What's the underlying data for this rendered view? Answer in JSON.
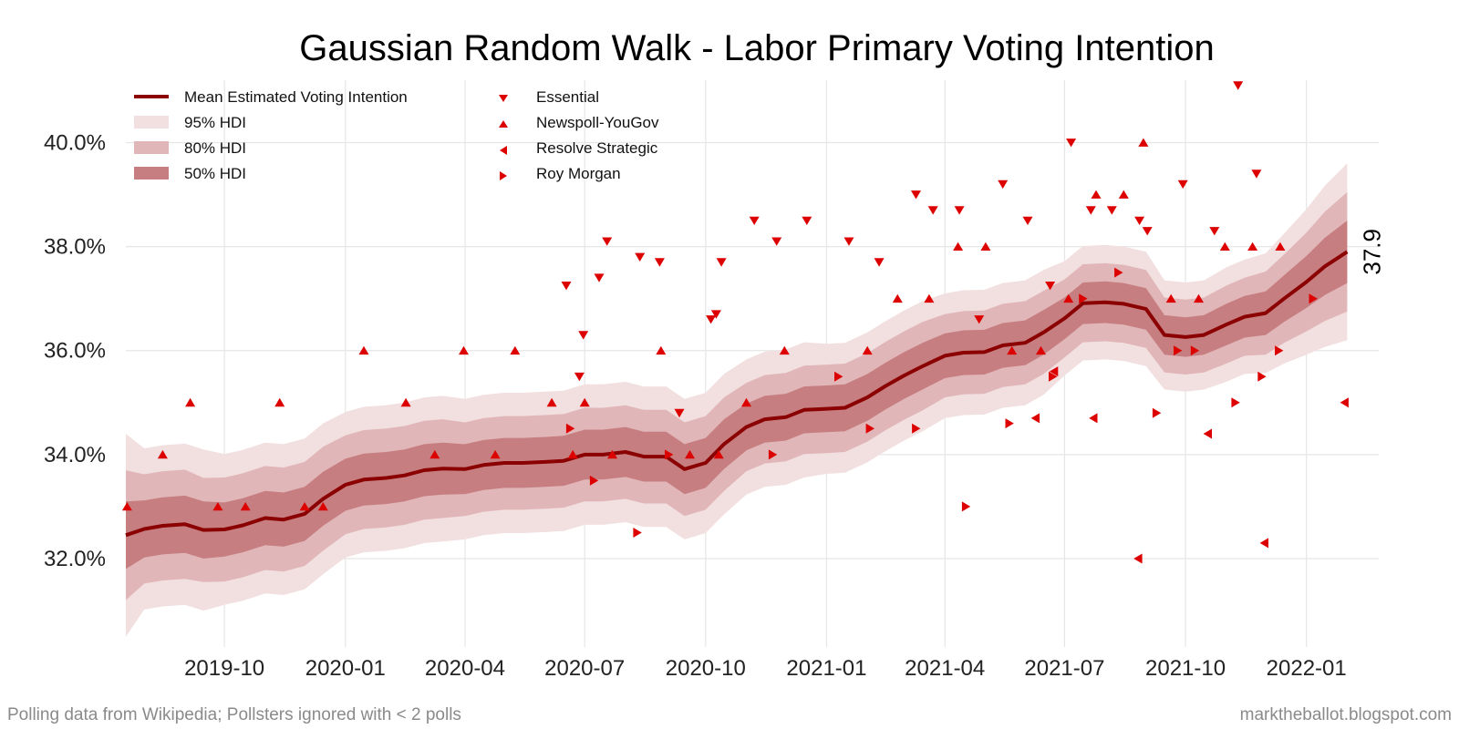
{
  "footer": {
    "left": "Polling data from Wikipedia; Pollsters ignored with < 2 polls",
    "right": "marktheballot.blogspot.com"
  },
  "chart_data": {
    "type": "line",
    "title": "Gaussian Random Walk - Labor Primary Voting Intention",
    "xlabel": "",
    "ylabel": "",
    "x_range": [
      "2019-07-18",
      "2022-02-25"
    ],
    "ylim": [
      30.3,
      41.2
    ],
    "yticks": [
      32,
      34,
      36,
      38,
      40
    ],
    "ytick_labels": [
      "32.0%",
      "34.0%",
      "36.0%",
      "38.0%",
      "40.0%"
    ],
    "xticks": [
      "2019-10-01",
      "2020-01-01",
      "2020-04-01",
      "2020-07-01",
      "2020-10-01",
      "2021-01-01",
      "2021-04-01",
      "2021-07-01",
      "2021-10-01",
      "2022-01-01"
    ],
    "xtick_labels": [
      "2019-10",
      "2020-01",
      "2020-04",
      "2020-07",
      "2020-10",
      "2021-01",
      "2021-04",
      "2021-07",
      "2021-10",
      "2022-01"
    ],
    "grid": true,
    "legend_position": "top-left",
    "legend": {
      "mean": "Mean Estimated Voting Intention",
      "hdi95": "95% HDI",
      "hdi80": "80% HDI",
      "hdi50": "50% HDI",
      "essential": "Essential",
      "newspoll": "Newspoll-YouGov",
      "resolve": "Resolve Strategic",
      "roymorgan": "Roy Morgan"
    },
    "end_label": "37.9",
    "colors": {
      "mean": "#8b0000",
      "hdi95": "#f2dfe0",
      "hdi80": "#e1b6b8",
      "hdi50": "#c67e80",
      "markers": "#dd0000",
      "grid": "#e6e6e6"
    },
    "mean": {
      "x": [
        "2019-07-18",
        "2019-08-01",
        "2019-08-15",
        "2019-09-01",
        "2019-09-15",
        "2019-10-01",
        "2019-10-15",
        "2019-11-01",
        "2019-11-15",
        "2019-12-01",
        "2019-12-15",
        "2020-01-01",
        "2020-01-15",
        "2020-02-01",
        "2020-02-15",
        "2020-03-01",
        "2020-03-15",
        "2020-04-01",
        "2020-04-15",
        "2020-05-01",
        "2020-05-15",
        "2020-06-01",
        "2020-06-15",
        "2020-07-01",
        "2020-07-15",
        "2020-08-01",
        "2020-08-15",
        "2020-09-01",
        "2020-09-15",
        "2020-10-01",
        "2020-10-15",
        "2020-11-01",
        "2020-11-15",
        "2020-12-01",
        "2020-12-15",
        "2021-01-01",
        "2021-01-15",
        "2021-02-01",
        "2021-02-15",
        "2021-03-01",
        "2021-03-15",
        "2021-04-01",
        "2021-04-15",
        "2021-05-01",
        "2021-05-15",
        "2021-06-01",
        "2021-06-15",
        "2021-07-01",
        "2021-07-15",
        "2021-08-01",
        "2021-08-15",
        "2021-09-01",
        "2021-09-15",
        "2021-10-01",
        "2021-10-15",
        "2021-11-01",
        "2021-11-15",
        "2021-12-01",
        "2021-12-15",
        "2022-01-01",
        "2022-01-15",
        "2022-02-01"
      ],
      "y": [
        32.45,
        32.57,
        32.63,
        32.66,
        32.55,
        32.56,
        32.64,
        32.78,
        32.75,
        32.86,
        33.15,
        33.42,
        33.52,
        33.55,
        33.6,
        33.7,
        33.73,
        33.72,
        33.8,
        33.84,
        33.84,
        33.86,
        33.88,
        34.0,
        34.0,
        34.05,
        33.96,
        33.96,
        33.72,
        33.84,
        34.2,
        34.53,
        34.68,
        34.72,
        34.86,
        34.88,
        34.9,
        35.1,
        35.32,
        35.52,
        35.7,
        35.9,
        35.96,
        35.97,
        36.1,
        36.15,
        36.35,
        36.62,
        36.91,
        36.93,
        36.9,
        36.8,
        36.3,
        36.26,
        36.3,
        36.5,
        36.65,
        36.72,
        37.0,
        37.32,
        37.62,
        37.9
      ]
    },
    "band_halfwidths": {
      "hdi95": [
        1.95,
        1.55,
        1.55,
        1.55,
        1.55,
        1.45,
        1.45,
        1.45,
        1.45,
        1.45,
        1.45,
        1.4,
        1.4,
        1.4,
        1.4,
        1.4,
        1.4,
        1.35,
        1.35,
        1.35,
        1.35,
        1.35,
        1.35,
        1.35,
        1.35,
        1.35,
        1.35,
        1.35,
        1.35,
        1.35,
        1.35,
        1.3,
        1.3,
        1.3,
        1.3,
        1.25,
        1.25,
        1.25,
        1.25,
        1.25,
        1.25,
        1.2,
        1.2,
        1.2,
        1.2,
        1.2,
        1.2,
        1.1,
        1.1,
        1.1,
        1.1,
        1.1,
        1.05,
        1.05,
        1.05,
        1.1,
        1.1,
        1.15,
        1.25,
        1.4,
        1.55,
        1.7
      ],
      "hdi80": [
        1.25,
        1.05,
        1.05,
        1.05,
        1.0,
        1.0,
        1.0,
        1.0,
        1.0,
        1.0,
        1.0,
        0.95,
        0.95,
        0.95,
        0.95,
        0.95,
        0.95,
        0.9,
        0.9,
        0.9,
        0.9,
        0.9,
        0.9,
        0.9,
        0.9,
        0.9,
        0.9,
        0.9,
        0.9,
        0.9,
        0.9,
        0.85,
        0.85,
        0.85,
        0.85,
        0.85,
        0.85,
        0.85,
        0.85,
        0.85,
        0.85,
        0.8,
        0.8,
        0.8,
        0.8,
        0.8,
        0.8,
        0.75,
        0.75,
        0.75,
        0.75,
        0.75,
        0.72,
        0.72,
        0.72,
        0.75,
        0.75,
        0.8,
        0.85,
        0.95,
        1.05,
        1.15
      ],
      "hdi50": [
        0.65,
        0.55,
        0.55,
        0.55,
        0.55,
        0.52,
        0.52,
        0.52,
        0.52,
        0.52,
        0.52,
        0.5,
        0.5,
        0.5,
        0.5,
        0.5,
        0.5,
        0.48,
        0.48,
        0.48,
        0.48,
        0.48,
        0.48,
        0.48,
        0.48,
        0.48,
        0.48,
        0.48,
        0.48,
        0.48,
        0.48,
        0.45,
        0.45,
        0.45,
        0.45,
        0.45,
        0.45,
        0.45,
        0.45,
        0.45,
        0.45,
        0.43,
        0.43,
        0.43,
        0.43,
        0.43,
        0.43,
        0.4,
        0.4,
        0.4,
        0.4,
        0.4,
        0.38,
        0.38,
        0.38,
        0.4,
        0.4,
        0.42,
        0.45,
        0.5,
        0.55,
        0.6
      ]
    },
    "polls": {
      "essential": [
        [
          "2020-06-17",
          37.25
        ],
        [
          "2020-06-27",
          35.5
        ],
        [
          "2020-06-30",
          36.3
        ],
        [
          "2020-07-12",
          37.4
        ],
        [
          "2020-07-18",
          38.1
        ],
        [
          "2020-08-12",
          37.8
        ],
        [
          "2020-08-27",
          37.7
        ],
        [
          "2020-09-11",
          34.8
        ],
        [
          "2020-10-05",
          36.6
        ],
        [
          "2020-10-09",
          36.7
        ],
        [
          "2020-10-13",
          37.7
        ],
        [
          "2020-11-07",
          38.5
        ],
        [
          "2020-11-24",
          38.1
        ],
        [
          "2020-12-17",
          38.5
        ],
        [
          "2021-01-18",
          38.1
        ],
        [
          "2021-02-10",
          37.7
        ],
        [
          "2021-03-10",
          39.0
        ],
        [
          "2021-03-23",
          38.7
        ],
        [
          "2021-04-12",
          38.7
        ],
        [
          "2021-04-27",
          36.6
        ],
        [
          "2021-05-15",
          39.2
        ],
        [
          "2021-06-03",
          38.5
        ],
        [
          "2021-06-20",
          37.25
        ],
        [
          "2021-07-06",
          40.0
        ],
        [
          "2021-07-21",
          38.7
        ],
        [
          "2021-08-06",
          38.7
        ],
        [
          "2021-08-27",
          38.5
        ],
        [
          "2021-09-02",
          38.3
        ],
        [
          "2021-09-29",
          39.2
        ],
        [
          "2021-10-23",
          38.3
        ],
        [
          "2021-11-10",
          41.1
        ],
        [
          "2021-11-24",
          39.4
        ]
      ],
      "newspoll": [
        [
          "2019-07-19",
          33.0
        ],
        [
          "2019-08-15",
          34.0
        ],
        [
          "2019-09-05",
          35.0
        ],
        [
          "2019-09-26",
          33.0
        ],
        [
          "2019-10-17",
          33.0
        ],
        [
          "2019-11-12",
          35.0
        ],
        [
          "2019-12-01",
          33.0
        ],
        [
          "2019-12-15",
          33.0
        ],
        [
          "2020-01-15",
          36.0
        ],
        [
          "2020-02-16",
          35.0
        ],
        [
          "2020-03-09",
          34.0
        ],
        [
          "2020-03-31",
          36.0
        ],
        [
          "2020-04-24",
          34.0
        ],
        [
          "2020-05-09",
          36.0
        ],
        [
          "2020-06-06",
          35.0
        ],
        [
          "2020-06-22",
          34.0
        ],
        [
          "2020-07-01",
          35.0
        ],
        [
          "2020-07-22",
          34.0
        ],
        [
          "2020-08-28",
          36.0
        ],
        [
          "2020-09-19",
          34.0
        ],
        [
          "2020-10-11",
          34.0
        ],
        [
          "2020-11-01",
          35.0
        ],
        [
          "2020-11-30",
          36.0
        ],
        [
          "2021-02-01",
          36.0
        ],
        [
          "2021-02-24",
          37.0
        ],
        [
          "2021-03-20",
          37.0
        ],
        [
          "2021-04-11",
          38.0
        ],
        [
          "2021-05-02",
          38.0
        ],
        [
          "2021-05-22",
          36.0
        ],
        [
          "2021-06-13",
          36.0
        ],
        [
          "2021-07-04",
          37.0
        ],
        [
          "2021-07-25",
          39.0
        ],
        [
          "2021-08-15",
          39.0
        ],
        [
          "2021-08-30",
          40.0
        ],
        [
          "2021-09-20",
          37.0
        ],
        [
          "2021-10-11",
          37.0
        ],
        [
          "2021-10-31",
          38.0
        ],
        [
          "2021-11-21",
          38.0
        ],
        [
          "2021-12-12",
          38.0
        ]
      ],
      "resolve": [
        [
          "2021-06-09",
          34.7
        ],
        [
          "2021-06-23",
          35.6
        ],
        [
          "2021-07-23",
          34.7
        ],
        [
          "2021-08-26",
          32.0
        ],
        [
          "2021-10-18",
          34.4
        ],
        [
          "2021-11-30",
          32.3
        ],
        [
          "2022-01-30",
          35.0
        ]
      ],
      "roymorgan": [
        [
          "2020-06-20",
          34.5
        ],
        [
          "2020-07-08",
          33.5
        ],
        [
          "2020-08-10",
          32.5
        ],
        [
          "2020-09-03",
          34.0
        ],
        [
          "2020-11-21",
          34.0
        ],
        [
          "2021-01-10",
          35.5
        ],
        [
          "2021-02-03",
          34.5
        ],
        [
          "2021-03-10",
          34.5
        ],
        [
          "2021-04-17",
          33.0
        ],
        [
          "2021-05-20",
          34.6
        ],
        [
          "2021-06-22",
          35.5
        ],
        [
          "2021-07-15",
          37.0
        ],
        [
          "2021-08-11",
          37.5
        ],
        [
          "2021-09-09",
          34.8
        ],
        [
          "2021-09-25",
          36.0
        ],
        [
          "2021-10-08",
          36.0
        ],
        [
          "2021-11-08",
          35.0
        ],
        [
          "2021-11-28",
          35.5
        ],
        [
          "2021-12-11",
          36.0
        ],
        [
          "2022-01-06",
          37.0
        ]
      ]
    }
  }
}
